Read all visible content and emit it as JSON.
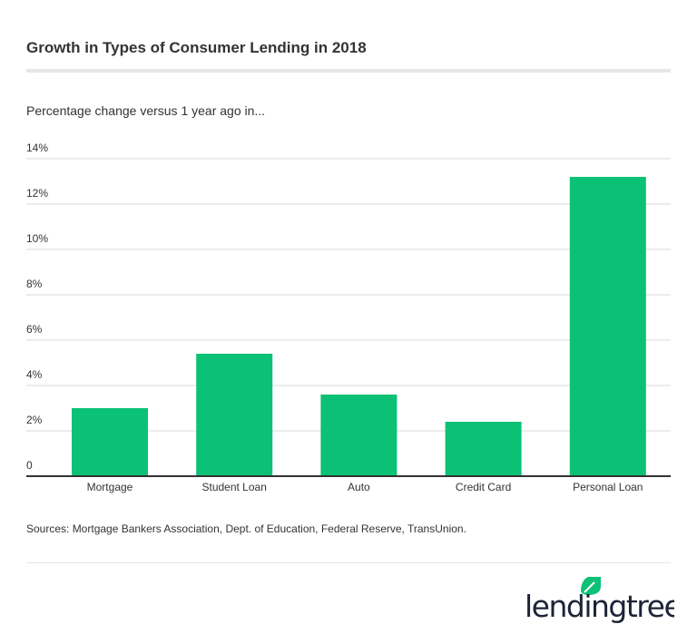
{
  "title": "Growth in Types of Consumer Lending in 2018",
  "subtitle": "Percentage change versus 1 year ago in...",
  "source": "Sources: Mortgage Bankers Association, Dept. of Education, Federal Reserve, TransUnion.",
  "logo_text": "lendingtree",
  "colors": {
    "bar": "#0bc175",
    "grid": "#e6e6e6",
    "axis": "#333333"
  },
  "chart_data": {
    "type": "bar",
    "categories": [
      "Mortgage",
      "Student Loan",
      "Auto",
      "Credit Card",
      "Personal Loan"
    ],
    "values": [
      3.0,
      5.4,
      3.6,
      2.4,
      13.2
    ],
    "ylim": [
      0,
      14
    ],
    "yticks": [
      0,
      2,
      4,
      6,
      8,
      10,
      12,
      14
    ],
    "ytick_labels": [
      "0",
      "2%",
      "4%",
      "6%",
      "8%",
      "10%",
      "12%",
      "14%"
    ],
    "grid": true,
    "title": "Growth in Types of Consumer Lending in 2018",
    "xlabel": "",
    "ylabel": ""
  }
}
